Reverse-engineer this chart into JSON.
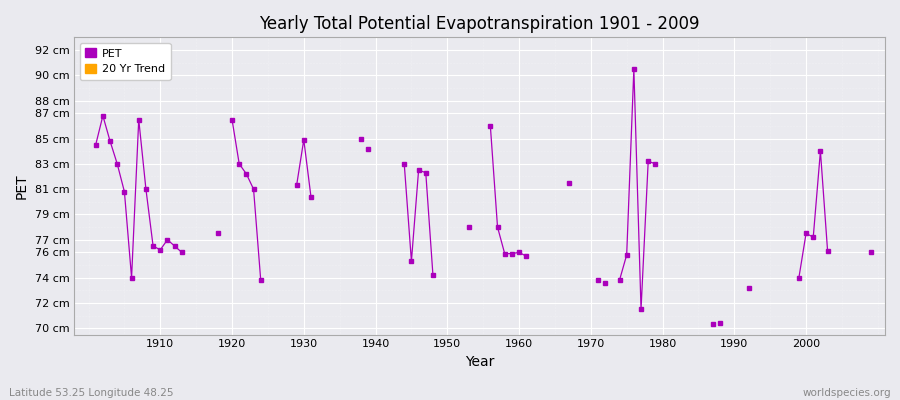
{
  "title": "Yearly Total Potential Evapotranspiration 1901 - 2009",
  "xlabel": "Year",
  "ylabel": "PET",
  "subtitle": "Latitude 53.25 Longitude 48.25",
  "watermark": "worldspecies.org",
  "pet_color": "#AA00BB",
  "trend_color": "#FFA500",
  "bg_color": "#EAEAEF",
  "ylim_min": 69.5,
  "ylim_max": 93.0,
  "xlim_min": 1898,
  "xlim_max": 2011,
  "ytick_values": [
    70,
    72,
    74,
    76,
    77,
    79,
    81,
    83,
    85,
    87,
    88,
    90,
    92
  ],
  "xtick_values": [
    1910,
    1920,
    1930,
    1940,
    1950,
    1960,
    1970,
    1980,
    1990,
    2000
  ],
  "pet_data": {
    "1901": 84.5,
    "1902": 86.8,
    "1903": 84.8,
    "1904": 83.0,
    "1905": 80.8,
    "1906": 74.0,
    "1907": 86.5,
    "1908": 81.0,
    "1909": 76.5,
    "1910": 76.2,
    "1911": 77.0,
    "1912": 76.5,
    "1913": 76.0,
    "1918": 77.5,
    "1920": 86.5,
    "1921": 83.0,
    "1922": 82.2,
    "1923": 81.0,
    "1924": 73.8,
    "1929": 81.3,
    "1930": 84.9,
    "1931": 80.4,
    "1938": 85.0,
    "1939": 84.2,
    "1944": 83.0,
    "1945": 75.3,
    "1946": 82.5,
    "1947": 82.3,
    "1948": 74.2,
    "1953": 78.0,
    "1956": 86.0,
    "1957": 78.0,
    "1958": 75.9,
    "1959": 75.9,
    "1960": 76.0,
    "1961": 75.7,
    "1967": 81.5,
    "1971": 73.8,
    "1972": 73.6,
    "1974": 73.8,
    "1975": 75.8,
    "1976": 90.5,
    "1977": 71.5,
    "1978": 83.2,
    "1979": 83.0,
    "1987": 70.3,
    "1988": 70.4,
    "1992": 73.2,
    "1999": 74.0,
    "2000": 77.5,
    "2001": 77.2,
    "2002": 84.0,
    "2003": 76.1,
    "2009": 76.0
  },
  "line_segments": [
    [
      1901,
      1902,
      1903,
      1904,
      1905,
      1906,
      1907,
      1908,
      1909,
      1910,
      1911,
      1912,
      1913
    ],
    [
      1920,
      1921,
      1922,
      1923,
      1924
    ],
    [
      1929,
      1930,
      1931
    ],
    [
      1944,
      1945,
      1946,
      1947,
      1948
    ],
    [
      1956,
      1957,
      1958,
      1959,
      1960,
      1961
    ],
    [
      1974,
      1975,
      1976,
      1977,
      1978,
      1979
    ],
    [
      1999,
      2000,
      2001,
      2002,
      2003
    ]
  ]
}
